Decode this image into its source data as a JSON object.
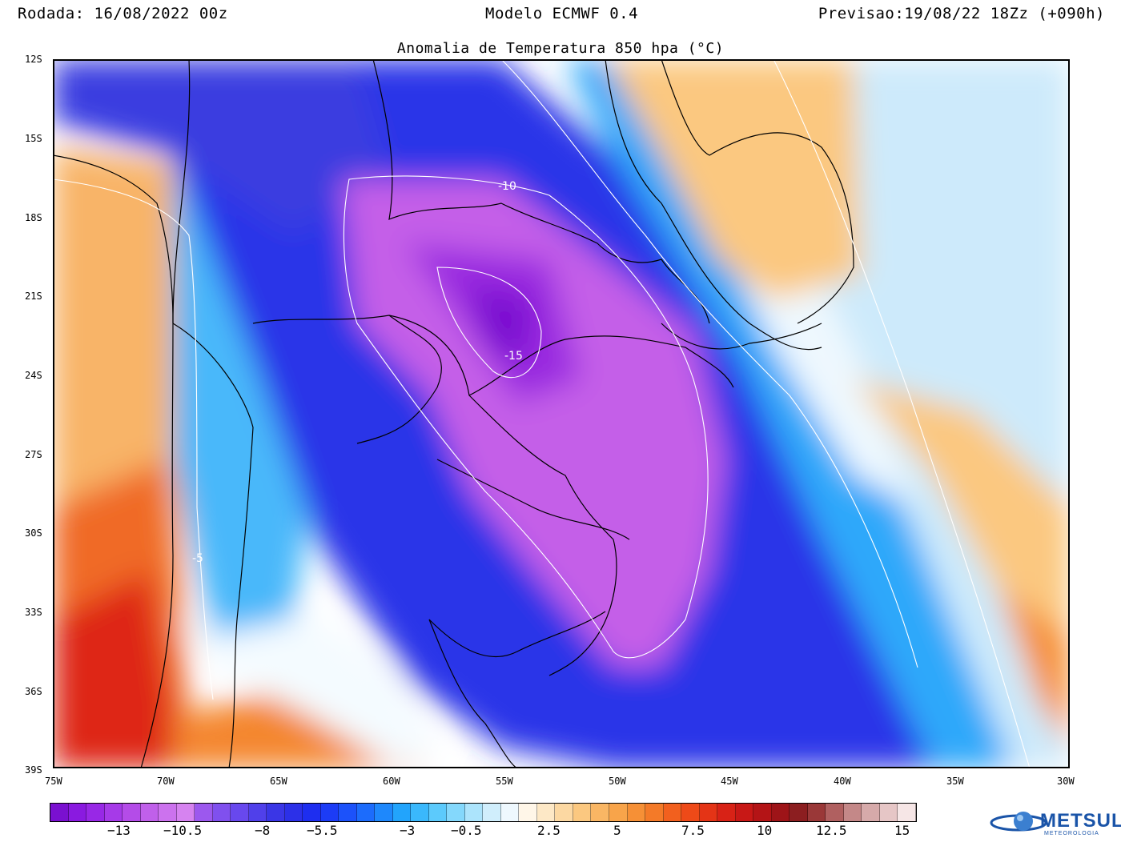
{
  "header": {
    "run": "Rodada: 16/08/2022 00z",
    "model": "Modelo ECMWF 0.4",
    "forecast": "Previsao:19/08/22 18Zz (+090h)"
  },
  "title": "Anomalia de Temperatura 850 hpa (°C)",
  "map": {
    "lat_labels": [
      "12S",
      "15S",
      "18S",
      "21S",
      "24S",
      "27S",
      "30S",
      "33S",
      "36S",
      "39S"
    ],
    "lon_labels": [
      "75W",
      "70W",
      "65W",
      "60W",
      "55W",
      "50W",
      "45W",
      "40W",
      "35W",
      "30W"
    ],
    "contour_labels": [
      "-10",
      "-15",
      "-5"
    ]
  },
  "colorbar": {
    "labels": [
      "−13",
      "−10.5",
      "−8",
      "−5.5",
      "−3",
      "−0.5",
      "2.5",
      "5",
      "7.5",
      "10",
      "12.5",
      "15"
    ],
    "colors": [
      "#7a10d0",
      "#8a1ae0",
      "#9828e6",
      "#a63ae8",
      "#b44ce8",
      "#c060ea",
      "#cc72ee",
      "#d683f0",
      "#9c58ee",
      "#8050ee",
      "#6848ee",
      "#5040ea",
      "#3a36e6",
      "#2c30e8",
      "#1e2ef0",
      "#1c3cf6",
      "#1c52fa",
      "#1c6cfc",
      "#1e88fc",
      "#22a4fc",
      "#3ab8fc",
      "#5ccafc",
      "#84d8fc",
      "#ace4fc",
      "#d0eefc",
      "#eef8fe",
      "#fff6e8",
      "#fde8c6",
      "#fcd8a2",
      "#fbc880",
      "#f9b664",
      "#f8a44a",
      "#f69036",
      "#f47a28",
      "#f2601e",
      "#ee4a18",
      "#e43416",
      "#d82216",
      "#c81816",
      "#b41416",
      "#9e1418",
      "#8c1e20",
      "#9a3838",
      "#b06060",
      "#c48888",
      "#d6aaaa",
      "#e6c6c6",
      "#f6e6e6"
    ]
  },
  "brand": {
    "name": "METSUL",
    "tagline": "METEOROLOGIA"
  }
}
